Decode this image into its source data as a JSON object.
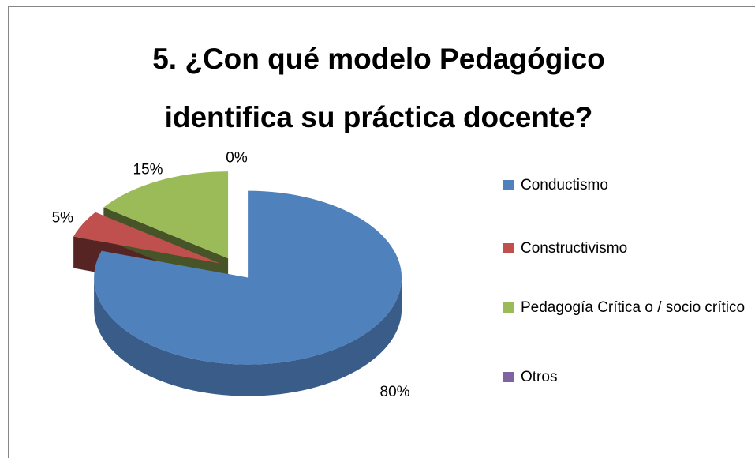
{
  "chart_data": {
    "type": "pie3d",
    "title": "5. ¿Con qué modelo Pedagógico identifica su práctica docente?",
    "categories": [
      "Conductismo",
      "Constructivismo",
      "Pedagogía Crítica o / socio crítico",
      "Otros"
    ],
    "values": [
      80,
      5,
      15,
      0
    ],
    "value_labels": [
      "80%",
      "5%",
      "15%",
      "0%"
    ],
    "colors": [
      "#4f81bd",
      "#c0504d",
      "#9bbb59",
      "#8064a2"
    ],
    "legend": "right"
  }
}
